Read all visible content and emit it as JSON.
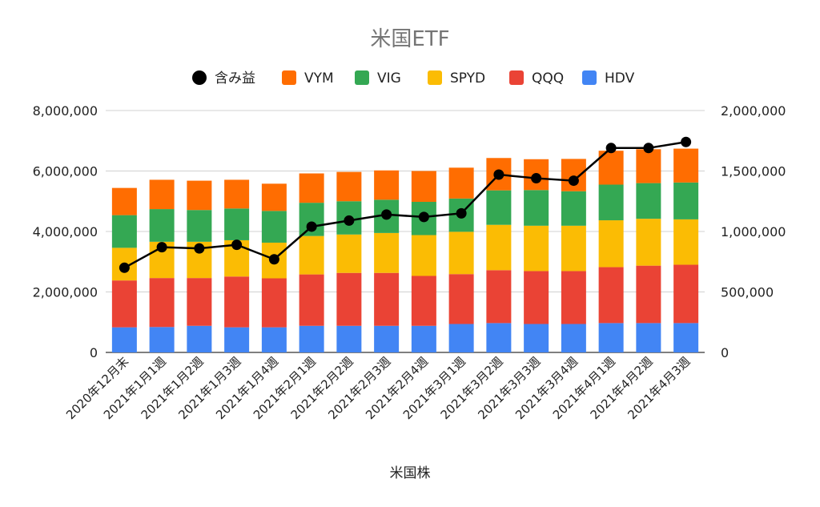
{
  "chart_data": {
    "type": "bar",
    "stacked": true,
    "title": "米国ETF",
    "xlabel": "米国株",
    "categories": [
      "2020年12月末",
      "2021年1月1週",
      "2021年1月2週",
      "2021年1月3週",
      "2021年1月4週",
      "2021年2月1週",
      "2021年2月2週",
      "2021年2月3週",
      "2021年2月4週",
      "2021年3月1週",
      "2021年3月2週",
      "2021年3月3週",
      "2021年3月4週",
      "2021年4月1週",
      "2021年4月2週",
      "2021年4月3週"
    ],
    "series": [
      {
        "name": "HDV",
        "color": "#4285f4",
        "values": [
          830000,
          840000,
          880000,
          830000,
          830000,
          880000,
          880000,
          880000,
          880000,
          940000,
          970000,
          940000,
          940000,
          970000,
          970000,
          970000
        ]
      },
      {
        "name": "QQQ",
        "color": "#ea4335",
        "values": [
          1550000,
          1620000,
          1580000,
          1680000,
          1620000,
          1700000,
          1750000,
          1750000,
          1650000,
          1650000,
          1750000,
          1750000,
          1750000,
          1850000,
          1900000,
          1930000
        ]
      },
      {
        "name": "SPYD",
        "color": "#fbbc04",
        "values": [
          1080000,
          1200000,
          1200000,
          1200000,
          1180000,
          1270000,
          1270000,
          1320000,
          1350000,
          1400000,
          1500000,
          1500000,
          1500000,
          1550000,
          1550000,
          1500000
        ]
      },
      {
        "name": "VIG",
        "color": "#34a853",
        "values": [
          1080000,
          1080000,
          1050000,
          1050000,
          1050000,
          1100000,
          1100000,
          1100000,
          1100000,
          1100000,
          1140000,
          1180000,
          1140000,
          1180000,
          1180000,
          1220000
        ]
      },
      {
        "name": "VYM",
        "color": "#ff6d01",
        "values": [
          900000,
          970000,
          970000,
          950000,
          900000,
          970000,
          970000,
          970000,
          1020000,
          1020000,
          1070000,
          1020000,
          1070000,
          1120000,
          1120000,
          1120000
        ]
      }
    ],
    "line_series": {
      "name": "含み益",
      "color": "#000000",
      "axis": "right",
      "values": [
        700000,
        870000,
        860000,
        890000,
        770000,
        1040000,
        1090000,
        1140000,
        1120000,
        1150000,
        1470000,
        1440000,
        1420000,
        1690000,
        1690000,
        1740000
      ]
    },
    "y_left": {
      "min": 0,
      "max": 8000000,
      "ticks": [
        "0",
        "2,000,000",
        "4,000,000",
        "6,000,000",
        "8,000,000"
      ]
    },
    "y_right": {
      "min": 0,
      "max": 2000000,
      "ticks": [
        "0",
        "500,000",
        "1,000,000",
        "1,500,000",
        "2,000,000"
      ]
    },
    "legend": {
      "position": "top",
      "order": [
        "含み益",
        "VYM",
        "VIG",
        "SPYD",
        "QQQ",
        "HDV"
      ]
    },
    "grid": true
  }
}
